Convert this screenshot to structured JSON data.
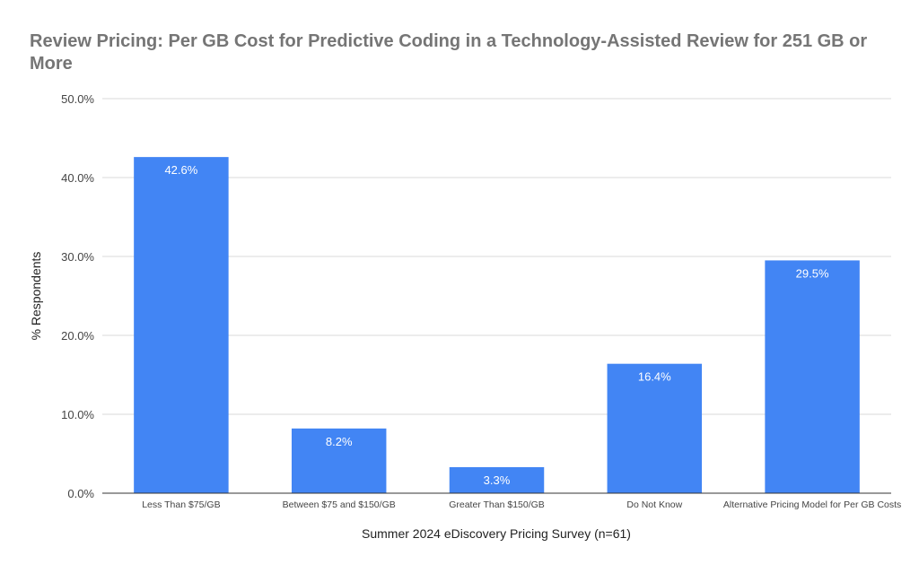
{
  "chart_data": {
    "type": "bar",
    "title": "Review Pricing: Per GB Cost for Predictive Coding in a Technology-Assisted Review for 251 GB or More",
    "title_lines": [
      "Review Pricing: Per GB Cost for Predictive Coding in a Technology-Assisted Review for 251 GB or",
      "More"
    ],
    "xlabel": "Summer 2024 eDiscovery Pricing Survey (n=61)",
    "ylabel": "% Respondents",
    "categories": [
      "Less Than $75/GB",
      "Between $75 and $150/GB",
      "Greater Than $150/GB",
      "Do Not Know",
      "Alternative Pricing Model for Per GB Costs"
    ],
    "values": [
      42.6,
      8.2,
      3.3,
      16.4,
      29.5
    ],
    "data_labels": [
      "42.6%",
      "8.2%",
      "3.3%",
      "16.4%",
      "29.5%"
    ],
    "ylim": [
      0,
      50
    ],
    "yticks": [
      0,
      10,
      20,
      30,
      40,
      50
    ],
    "ytick_labels": [
      "0.0%",
      "10.0%",
      "20.0%",
      "30.0%",
      "40.0%",
      "50.0%"
    ],
    "grid": true,
    "legend": "none",
    "colors": {
      "bar": "#4285F4",
      "title": "#757575",
      "gridline": "#d9d9d9"
    }
  }
}
